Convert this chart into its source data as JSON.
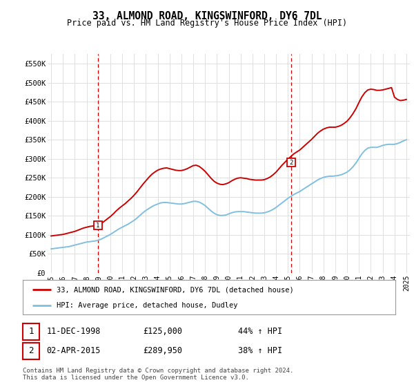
{
  "title": "33, ALMOND ROAD, KINGSWINFORD, DY6 7DL",
  "subtitle": "Price paid vs. HM Land Registry's House Price Index (HPI)",
  "legend_line1": "33, ALMOND ROAD, KINGSWINFORD, DY6 7DL (detached house)",
  "legend_line2": "HPI: Average price, detached house, Dudley",
  "transaction1_date": "11-DEC-1998",
  "transaction1_price": "£125,000",
  "transaction1_hpi": "44% ↑ HPI",
  "transaction2_date": "02-APR-2015",
  "transaction2_price": "£289,950",
  "transaction2_hpi": "38% ↑ HPI",
  "footnote": "Contains HM Land Registry data © Crown copyright and database right 2024.\nThis data is licensed under the Open Government Licence v3.0.",
  "red_color": "#cc0000",
  "blue_color": "#7fbfdf",
  "grid_color": "#e0e0e0",
  "background_color": "#ffffff",
  "ylim": [
    0,
    575000
  ],
  "yticks": [
    0,
    50000,
    100000,
    150000,
    200000,
    250000,
    300000,
    350000,
    400000,
    450000,
    500000,
    550000
  ],
  "ytick_labels": [
    "£0",
    "£50K",
    "£100K",
    "£150K",
    "£200K",
    "£250K",
    "£300K",
    "£350K",
    "£400K",
    "£450K",
    "£500K",
    "£550K"
  ],
  "hpi_x": [
    1995.0,
    1995.25,
    1995.5,
    1995.75,
    1996.0,
    1996.25,
    1996.5,
    1996.75,
    1997.0,
    1997.25,
    1997.5,
    1997.75,
    1998.0,
    1998.25,
    1998.5,
    1998.75,
    1999.0,
    1999.25,
    1999.5,
    1999.75,
    2000.0,
    2000.25,
    2000.5,
    2000.75,
    2001.0,
    2001.25,
    2001.5,
    2001.75,
    2002.0,
    2002.25,
    2002.5,
    2002.75,
    2003.0,
    2003.25,
    2003.5,
    2003.75,
    2004.0,
    2004.25,
    2004.5,
    2004.75,
    2005.0,
    2005.25,
    2005.5,
    2005.75,
    2006.0,
    2006.25,
    2006.5,
    2006.75,
    2007.0,
    2007.25,
    2007.5,
    2007.75,
    2008.0,
    2008.25,
    2008.5,
    2008.75,
    2009.0,
    2009.25,
    2009.5,
    2009.75,
    2010.0,
    2010.25,
    2010.5,
    2010.75,
    2011.0,
    2011.25,
    2011.5,
    2011.75,
    2012.0,
    2012.25,
    2012.5,
    2012.75,
    2013.0,
    2013.25,
    2013.5,
    2013.75,
    2014.0,
    2014.25,
    2014.5,
    2014.75,
    2015.0,
    2015.25,
    2015.5,
    2015.75,
    2016.0,
    2016.25,
    2016.5,
    2016.75,
    2017.0,
    2017.25,
    2017.5,
    2017.75,
    2018.0,
    2018.25,
    2018.5,
    2018.75,
    2019.0,
    2019.25,
    2019.5,
    2019.75,
    2020.0,
    2020.25,
    2020.5,
    2020.75,
    2021.0,
    2021.25,
    2021.5,
    2021.75,
    2022.0,
    2022.25,
    2022.5,
    2022.75,
    2023.0,
    2023.25,
    2023.5,
    2023.75,
    2024.0,
    2024.25,
    2024.5,
    2024.75,
    2025.0
  ],
  "hpi_y": [
    63000,
    64000,
    65000,
    66000,
    67000,
    68000,
    69000,
    71000,
    73000,
    75000,
    77000,
    79000,
    81000,
    82000,
    83000,
    84000,
    86000,
    89000,
    93000,
    97000,
    101000,
    106000,
    111000,
    116000,
    120000,
    124000,
    128000,
    133000,
    138000,
    144000,
    151000,
    158000,
    164000,
    169000,
    174000,
    178000,
    181000,
    184000,
    185000,
    185000,
    184000,
    183000,
    182000,
    181000,
    181000,
    182000,
    184000,
    186000,
    188000,
    188000,
    186000,
    182000,
    177000,
    170000,
    163000,
    157000,
    153000,
    151000,
    151000,
    152000,
    155000,
    158000,
    160000,
    161000,
    161000,
    161000,
    160000,
    159000,
    158000,
    157000,
    157000,
    157000,
    158000,
    160000,
    163000,
    167000,
    172000,
    178000,
    184000,
    190000,
    196000,
    201000,
    206000,
    210000,
    214000,
    219000,
    224000,
    229000,
    234000,
    239000,
    244000,
    248000,
    251000,
    253000,
    254000,
    254000,
    255000,
    256000,
    258000,
    261000,
    265000,
    271000,
    279000,
    289000,
    301000,
    313000,
    322000,
    328000,
    330000,
    330000,
    330000,
    332000,
    335000,
    337000,
    338000,
    338000,
    338000,
    340000,
    343000,
    347000,
    350000
  ],
  "red_x": [
    1995.0,
    1995.25,
    1995.5,
    1995.75,
    1996.0,
    1996.25,
    1996.5,
    1996.75,
    1997.0,
    1997.25,
    1997.5,
    1997.75,
    1998.0,
    1998.25,
    1998.5,
    1998.75,
    1999.0,
    1999.25,
    1999.5,
    1999.75,
    2000.0,
    2000.25,
    2000.5,
    2000.75,
    2001.0,
    2001.25,
    2001.5,
    2001.75,
    2002.0,
    2002.25,
    2002.5,
    2002.75,
    2003.0,
    2003.25,
    2003.5,
    2003.75,
    2004.0,
    2004.25,
    2004.5,
    2004.75,
    2005.0,
    2005.25,
    2005.5,
    2005.75,
    2006.0,
    2006.25,
    2006.5,
    2006.75,
    2007.0,
    2007.25,
    2007.5,
    2007.75,
    2008.0,
    2008.25,
    2008.5,
    2008.75,
    2009.0,
    2009.25,
    2009.5,
    2009.75,
    2010.0,
    2010.25,
    2010.5,
    2010.75,
    2011.0,
    2011.25,
    2011.5,
    2011.75,
    2012.0,
    2012.25,
    2012.5,
    2012.75,
    2013.0,
    2013.25,
    2013.5,
    2013.75,
    2014.0,
    2014.25,
    2014.5,
    2014.75,
    2015.0,
    2015.25,
    2015.5,
    2015.75,
    2016.0,
    2016.25,
    2016.5,
    2016.75,
    2017.0,
    2017.25,
    2017.5,
    2017.75,
    2018.0,
    2018.25,
    2018.5,
    2018.75,
    2019.0,
    2019.25,
    2019.5,
    2019.75,
    2020.0,
    2020.25,
    2020.5,
    2020.75,
    2021.0,
    2021.25,
    2021.5,
    2021.75,
    2022.0,
    2022.25,
    2022.5,
    2022.75,
    2023.0,
    2023.25,
    2023.5,
    2023.75,
    2024.0,
    2024.25,
    2024.5,
    2024.75,
    2025.0
  ],
  "red_y": [
    97000,
    98000,
    99000,
    100000,
    101000,
    103000,
    105000,
    107000,
    109000,
    112000,
    115000,
    118000,
    120000,
    122000,
    123000,
    124000,
    126000,
    130000,
    136000,
    142000,
    148000,
    155000,
    163000,
    170000,
    176000,
    182000,
    189000,
    196000,
    204000,
    213000,
    223000,
    233000,
    242000,
    251000,
    259000,
    265000,
    270000,
    273000,
    275000,
    276000,
    274000,
    272000,
    270000,
    269000,
    269000,
    271000,
    274000,
    278000,
    282000,
    283000,
    280000,
    274000,
    267000,
    258000,
    249000,
    241000,
    236000,
    233000,
    232000,
    234000,
    237000,
    242000,
    246000,
    249000,
    250000,
    249000,
    248000,
    246000,
    245000,
    244000,
    244000,
    244000,
    245000,
    248000,
    252000,
    258000,
    265000,
    274000,
    283000,
    291000,
    299000,
    306000,
    313000,
    318000,
    323000,
    330000,
    337000,
    344000,
    351000,
    359000,
    367000,
    373000,
    378000,
    381000,
    383000,
    383000,
    383000,
    385000,
    388000,
    393000,
    399000,
    408000,
    419000,
    432000,
    448000,
    463000,
    474000,
    481000,
    483000,
    482000,
    480000,
    480000,
    481000,
    483000,
    485000,
    487000,
    462000,
    456000,
    453000,
    454000,
    456000
  ],
  "marker1_x": 1998.95,
  "marker1_y": 125000,
  "marker2_x": 2015.25,
  "marker2_y": 289950,
  "vline1_x": 1998.95,
  "vline2_x": 2015.25,
  "xlim": [
    1994.7,
    2025.3
  ],
  "xticks": [
    1995,
    1996,
    1997,
    1998,
    1999,
    2000,
    2001,
    2002,
    2003,
    2004,
    2005,
    2006,
    2007,
    2008,
    2009,
    2010,
    2011,
    2012,
    2013,
    2014,
    2015,
    2016,
    2017,
    2018,
    2019,
    2020,
    2021,
    2022,
    2023,
    2024,
    2025
  ]
}
